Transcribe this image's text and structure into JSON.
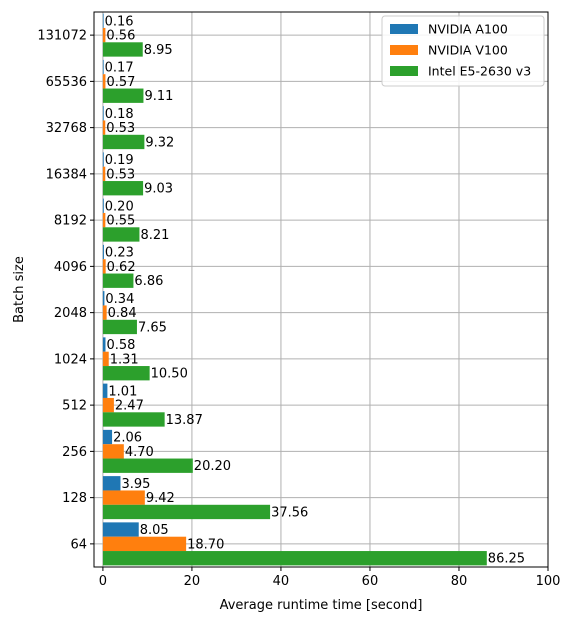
{
  "chart_data": {
    "type": "bar",
    "orientation": "horizontal",
    "title": "",
    "xlabel": "Average runtime time [second]",
    "ylabel": "Batch size",
    "xlim": [
      -2,
      100
    ],
    "xticks": [
      0,
      20,
      40,
      60,
      80,
      100
    ],
    "grid": true,
    "legend_position": "top-right",
    "categories": [
      "64",
      "128",
      "256",
      "512",
      "1024",
      "2048",
      "4096",
      "8192",
      "16384",
      "32768",
      "65536",
      "131072"
    ],
    "series": [
      {
        "name": "NVIDIA A100",
        "color": "#1f77b4",
        "values": [
          8.05,
          3.95,
          2.06,
          1.01,
          0.58,
          0.34,
          0.23,
          0.2,
          0.19,
          0.18,
          0.17,
          0.16
        ],
        "labels": [
          "8.05",
          "3.95",
          "2.06",
          "1.01",
          "0.58",
          "0.34",
          "0.23",
          "0.20",
          "0.19",
          "0.18",
          "0.17",
          "0.16"
        ]
      },
      {
        "name": "NVIDIA V100",
        "color": "#ff7f0e",
        "values": [
          18.7,
          9.42,
          4.7,
          2.47,
          1.31,
          0.84,
          0.62,
          0.55,
          0.53,
          0.53,
          0.57,
          0.56
        ],
        "labels": [
          "18.70",
          "9.42",
          "4.70",
          "2.47",
          "1.31",
          "0.84",
          "0.62",
          "0.55",
          "0.53",
          "0.53",
          "0.57",
          "0.56"
        ]
      },
      {
        "name": "Intel E5-2630 v3",
        "color": "#2ca02c",
        "values": [
          86.25,
          37.56,
          20.2,
          13.87,
          10.5,
          7.65,
          6.86,
          8.21,
          9.03,
          9.32,
          9.11,
          8.95
        ],
        "labels": [
          "86.25",
          "37.56",
          "20.20",
          "13.87",
          "10.50",
          "7.65",
          "6.86",
          "8.21",
          "9.03",
          "9.32",
          "9.11",
          "8.95"
        ]
      }
    ]
  }
}
